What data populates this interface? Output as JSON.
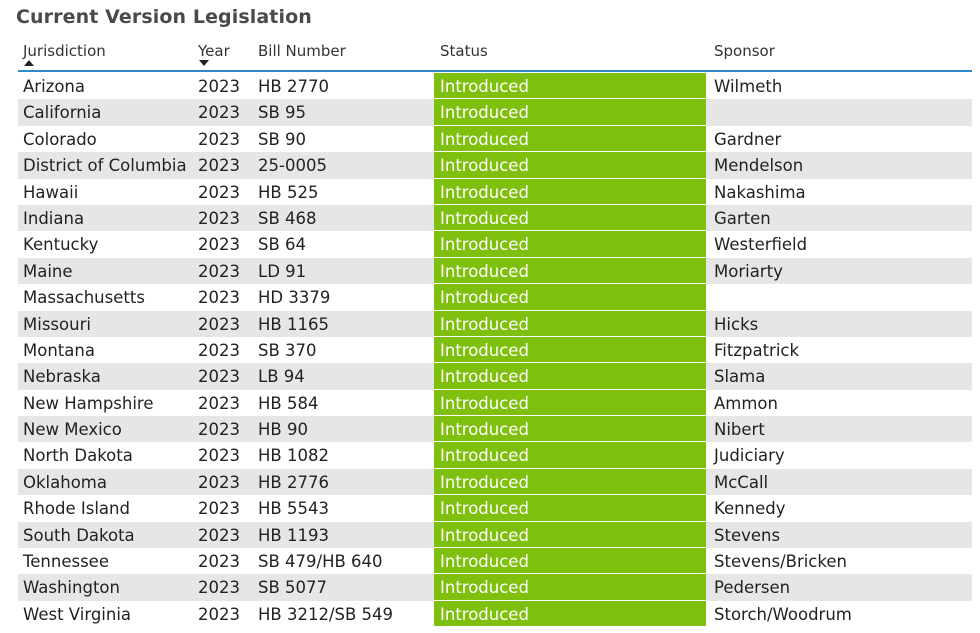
{
  "title": "Current Version Legislation",
  "columns": {
    "jurisdiction": "Jurisdiction",
    "year": "Year",
    "bill_number": "Bill Number",
    "status": "Status",
    "sponsor": "Sponsor"
  },
  "sort": {
    "jurisdiction": "ascending",
    "year": "descending"
  },
  "colors": {
    "status_fill": "#7fbf0e",
    "header_rule": "#2f89c9",
    "alt_row": "#e6e6e6"
  },
  "rows": [
    {
      "jurisdiction": "Arizona",
      "year": "2023",
      "bill_number": "HB 2770",
      "status": "Introduced",
      "sponsor": "Wilmeth"
    },
    {
      "jurisdiction": "California",
      "year": "2023",
      "bill_number": "SB 95",
      "status": "Introduced",
      "sponsor": ""
    },
    {
      "jurisdiction": "Colorado",
      "year": "2023",
      "bill_number": "SB 90",
      "status": "Introduced",
      "sponsor": "Gardner"
    },
    {
      "jurisdiction": "District of Columbia",
      "year": "2023",
      "bill_number": "25-0005",
      "status": "Introduced",
      "sponsor": "Mendelson"
    },
    {
      "jurisdiction": "Hawaii",
      "year": "2023",
      "bill_number": "HB 525",
      "status": "Introduced",
      "sponsor": "Nakashima"
    },
    {
      "jurisdiction": "Indiana",
      "year": "2023",
      "bill_number": "SB 468",
      "status": "Introduced",
      "sponsor": "Garten"
    },
    {
      "jurisdiction": "Kentucky",
      "year": "2023",
      "bill_number": "SB 64",
      "status": "Introduced",
      "sponsor": "Westerfield"
    },
    {
      "jurisdiction": "Maine",
      "year": "2023",
      "bill_number": "LD 91",
      "status": "Introduced",
      "sponsor": "Moriarty"
    },
    {
      "jurisdiction": "Massachusetts",
      "year": "2023",
      "bill_number": "HD 3379",
      "status": "Introduced",
      "sponsor": ""
    },
    {
      "jurisdiction": "Missouri",
      "year": "2023",
      "bill_number": "HB 1165",
      "status": "Introduced",
      "sponsor": "Hicks"
    },
    {
      "jurisdiction": "Montana",
      "year": "2023",
      "bill_number": "SB 370",
      "status": "Introduced",
      "sponsor": "Fitzpatrick"
    },
    {
      "jurisdiction": "Nebraska",
      "year": "2023",
      "bill_number": "LB 94",
      "status": "Introduced",
      "sponsor": "Slama"
    },
    {
      "jurisdiction": "New Hampshire",
      "year": "2023",
      "bill_number": "HB 584",
      "status": "Introduced",
      "sponsor": "Ammon"
    },
    {
      "jurisdiction": "New Mexico",
      "year": "2023",
      "bill_number": "HB 90",
      "status": "Introduced",
      "sponsor": "Nibert"
    },
    {
      "jurisdiction": "North Dakota",
      "year": "2023",
      "bill_number": "HB 1082",
      "status": "Introduced",
      "sponsor": "Judiciary"
    },
    {
      "jurisdiction": "Oklahoma",
      "year": "2023",
      "bill_number": "HB 2776",
      "status": "Introduced",
      "sponsor": "McCall"
    },
    {
      "jurisdiction": "Rhode Island",
      "year": "2023",
      "bill_number": "HB 5543",
      "status": "Introduced",
      "sponsor": "Kennedy"
    },
    {
      "jurisdiction": "South Dakota",
      "year": "2023",
      "bill_number": "HB 1193",
      "status": "Introduced",
      "sponsor": "Stevens"
    },
    {
      "jurisdiction": "Tennessee",
      "year": "2023",
      "bill_number": "SB 479/HB 640",
      "status": "Introduced",
      "sponsor": "Stevens/Bricken"
    },
    {
      "jurisdiction": "Washington",
      "year": "2023",
      "bill_number": "SB 5077",
      "status": "Introduced",
      "sponsor": "Pedersen"
    },
    {
      "jurisdiction": "West Virginia",
      "year": "2023",
      "bill_number": "HB 3212/SB 549",
      "status": "Introduced",
      "sponsor": "Storch/Woodrum"
    }
  ]
}
